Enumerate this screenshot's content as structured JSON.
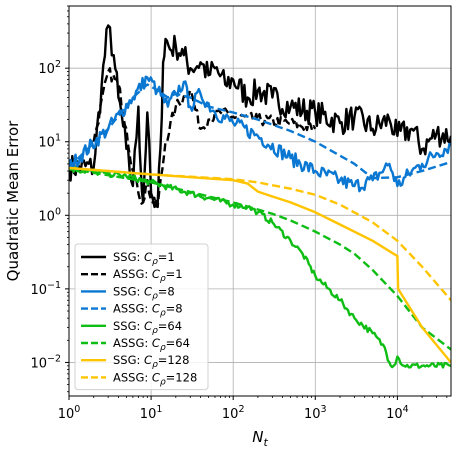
{
  "chart_data": {
    "type": "line",
    "xlabel": "N",
    "xlabel_sub": "t",
    "ylabel": "Quadratic Mean Error",
    "xscale": "log",
    "yscale": "log",
    "xlim": [
      1,
      45000
    ],
    "ylim": [
      0.0035,
      700
    ],
    "grid": true,
    "legend_position": "lower-left",
    "x_ticks": [
      {
        "value": 1,
        "base": "10",
        "exp": "0"
      },
      {
        "value": 10,
        "base": "10",
        "exp": "1"
      },
      {
        "value": 100,
        "base": "10",
        "exp": "2"
      },
      {
        "value": 1000,
        "base": "10",
        "exp": "3"
      },
      {
        "value": 10000,
        "base": "10",
        "exp": "4"
      }
    ],
    "y_ticks": [
      {
        "value": 0.01,
        "base": "10",
        "exp": "−2"
      },
      {
        "value": 0.1,
        "base": "10",
        "exp": "−1"
      },
      {
        "value": 1,
        "base": "10",
        "exp": "0"
      },
      {
        "value": 10,
        "base": "10",
        "exp": "1"
      },
      {
        "value": 100,
        "base": "10",
        "exp": "2"
      }
    ],
    "series": [
      {
        "name": "SSG: C_ρ=1",
        "legend_prefix": "SSG: ",
        "legend_sym": "C",
        "legend_sub": "ρ",
        "legend_suffix": "=1",
        "color": "#000000",
        "dash": "solid",
        "x": [
          1,
          2,
          2.5,
          3,
          3.5,
          4,
          5,
          6,
          7,
          7.5,
          8,
          9,
          10,
          11,
          12,
          13,
          14,
          15,
          17,
          20,
          25,
          30,
          40,
          50,
          60,
          80,
          100,
          150,
          200,
          300,
          500,
          1000,
          2000,
          3000,
          5000,
          8000,
          10000,
          15000,
          20000,
          30000,
          45000
        ],
        "y": [
          4.5,
          4.5,
          60,
          380,
          150,
          40,
          8,
          2.5,
          30,
          4,
          1.5,
          25,
          2,
          1.3,
          1.3,
          8,
          120,
          250,
          180,
          200,
          150,
          100,
          120,
          80,
          100,
          60,
          70,
          40,
          50,
          40,
          30,
          25,
          18,
          22,
          15,
          20,
          12,
          15,
          8,
          13,
          12
        ],
        "noise": 0.18
      },
      {
        "name": "ASSG: C_ρ=1",
        "legend_prefix": "ASSG: ",
        "legend_sym": "C",
        "legend_sub": "ρ",
        "legend_suffix": "=1",
        "color": "#000000",
        "dash": "dashed",
        "x": [
          2,
          3,
          4,
          5,
          6,
          7,
          8,
          9,
          10,
          12,
          15,
          20,
          30,
          40,
          50,
          70,
          100,
          200,
          500,
          1000
        ],
        "y": [
          10,
          90,
          60,
          15,
          4,
          2,
          1.5,
          3,
          1.6,
          1.3,
          10,
          30,
          50,
          15,
          20,
          25,
          22,
          20,
          18,
          15
        ],
        "noise": 0.08
      },
      {
        "name": "SSG: C_ρ=8",
        "legend_prefix": "SSG: ",
        "legend_sym": "C",
        "legend_sub": "ρ",
        "legend_suffix": "=8",
        "color": "#0a78d2",
        "dash": "solid",
        "x": [
          1,
          3,
          6,
          9,
          12,
          16,
          20,
          25,
          30,
          40,
          60,
          100,
          200,
          500,
          1000,
          2000,
          3000,
          5000,
          8000,
          10000,
          15000,
          20000,
          30000,
          45000
        ],
        "y": [
          4.5,
          15,
          40,
          75,
          50,
          30,
          45,
          65,
          30,
          45,
          25,
          18,
          12,
          6,
          4,
          3,
          2.5,
          3,
          5,
          2.5,
          4,
          5,
          7,
          9
        ],
        "noise": 0.1
      },
      {
        "name": "ASSG: C_ρ=8",
        "legend_prefix": "ASSG: ",
        "legend_sym": "C",
        "legend_sub": "ρ",
        "legend_suffix": "=8",
        "color": "#0a78d2",
        "dash": "dashed",
        "x": [
          1,
          3,
          6,
          9,
          12,
          16,
          20,
          30,
          50,
          100,
          200,
          500,
          1000,
          3000,
          5000,
          10000,
          20000,
          45000
        ],
        "y": [
          4.5,
          15,
          40,
          60,
          50,
          40,
          45,
          40,
          30,
          25,
          20,
          14,
          10,
          5,
          3.2,
          3.3,
          4,
          5.3
        ],
        "noise": 0
      },
      {
        "name": "SSG: C_ρ=64",
        "legend_prefix": "SSG: ",
        "legend_sym": "C",
        "legend_sub": "ρ",
        "legend_suffix": "=64",
        "color": "#0fbe14",
        "dash": "solid",
        "x": [
          1,
          5,
          10,
          30,
          100,
          150,
          200,
          300,
          500,
          700,
          1000,
          2000,
          3000,
          5000,
          7000,
          8000,
          9000,
          10000,
          12000,
          20000,
          45000
        ],
        "y": [
          4.3,
          3.4,
          2.8,
          2.0,
          1.4,
          1.3,
          1.1,
          0.8,
          0.45,
          0.3,
          0.15,
          0.07,
          0.04,
          0.025,
          0.016,
          0.01,
          0.009,
          0.012,
          0.009,
          0.009,
          0.009
        ],
        "noise": 0.04
      },
      {
        "name": "ASSG: C_ρ=64",
        "legend_prefix": "ASSG: ",
        "legend_sym": "C",
        "legend_sub": "ρ",
        "legend_suffix": "=64",
        "color": "#0fbe14",
        "dash": "dashed",
        "x": [
          1,
          10,
          100,
          200,
          300,
          500,
          1000,
          2000,
          3000,
          5000,
          10000,
          20000,
          45000
        ],
        "y": [
          4.3,
          2.8,
          1.5,
          1.2,
          1.05,
          0.85,
          0.6,
          0.4,
          0.3,
          0.18,
          0.08,
          0.03,
          0.015
        ],
        "noise": 0
      },
      {
        "name": "SSG: C_ρ=128",
        "legend_prefix": "SSG: ",
        "legend_sym": "C",
        "legend_sub": "ρ",
        "legend_suffix": "=128",
        "color": "#ffc400",
        "dash": "solid",
        "x": [
          1,
          10,
          100,
          150,
          200,
          300,
          500,
          1000,
          2000,
          5000,
          9000,
          10000,
          10200,
          20000,
          45000
        ],
        "y": [
          4.4,
          3.6,
          3.0,
          2.7,
          2.1,
          1.8,
          1.5,
          1.1,
          0.75,
          0.45,
          0.3,
          0.28,
          0.1,
          0.03,
          0.01
        ],
        "noise": 0
      },
      {
        "name": "ASSG: C_ρ=128",
        "legend_prefix": "ASSG: ",
        "legend_sym": "C",
        "legend_sub": "ρ",
        "legend_suffix": "=128",
        "color": "#ffc400",
        "dash": "dashed",
        "x": [
          1,
          10,
          100,
          200,
          500,
          1000,
          2000,
          5000,
          10000,
          20000,
          45000
        ],
        "y": [
          4.4,
          3.6,
          3.1,
          2.8,
          2.3,
          1.9,
          1.4,
          0.8,
          0.45,
          0.2,
          0.07
        ],
        "noise": 0
      }
    ]
  }
}
